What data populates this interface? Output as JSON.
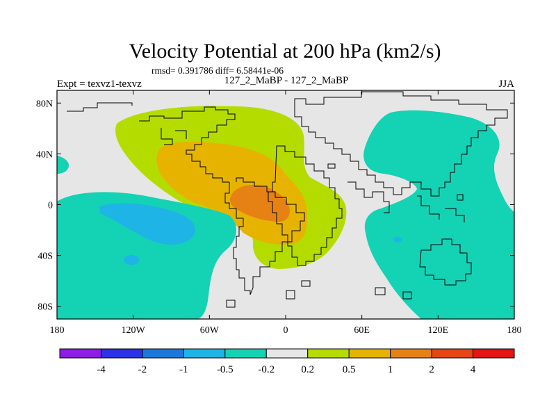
{
  "chart_data": {
    "type": "heatmap",
    "title": "Velocity Potential at 200 hPa (km2/s)",
    "stats": "rmsd= 0.391786 diff= 6.58441e-06",
    "experiment": "Expt = texvz1-texvz",
    "subtitle": "127_2_MaBP - 127_2_MaBP",
    "season": "JJA",
    "x_ticks": [
      "180",
      "120W",
      "60W",
      "0",
      "60E",
      "120E",
      "180"
    ],
    "x_tick_values": [
      -180,
      -120,
      -60,
      0,
      60,
      120,
      180
    ],
    "y_ticks": [
      "80N",
      "40N",
      "0",
      "40S",
      "80S"
    ],
    "y_tick_values": [
      80,
      40,
      0,
      -40,
      -80
    ],
    "xlim": [
      -180,
      180
    ],
    "ylim": [
      -90,
      90
    ],
    "colorbar": {
      "levels": [
        "-4",
        "-2",
        "-1",
        "-0.5",
        "-0.2",
        "0.2",
        "0.5",
        "1",
        "2",
        "4"
      ],
      "colors": [
        "#8c1ee6",
        "#2d32e6",
        "#1e78dc",
        "#1eb4e6",
        "#14d2b4",
        "#e6e6e6",
        "#b4dc00",
        "#e6b400",
        "#e68214",
        "#e64614",
        "#e61414"
      ]
    },
    "fields": [
      {
        "name": "positive-0.2-0.5",
        "level": "0.2 to 0.5",
        "center": [
          -30,
          30
        ]
      },
      {
        "name": "positive-0.5-1",
        "level": "0.5 to 1",
        "center": [
          -40,
          20
        ]
      },
      {
        "name": "positive-1-2",
        "level": "1 to 2",
        "center": [
          -20,
          5
        ]
      },
      {
        "name": "negative-pacific",
        "level": "-0.5 to -0.2",
        "center": [
          -150,
          -30
        ]
      },
      {
        "name": "negative-pacific-core",
        "level": "-1 to -0.5",
        "center": [
          -115,
          -20
        ]
      },
      {
        "name": "negative-asia",
        "level": "-0.5 to -0.2",
        "center": [
          110,
          20
        ]
      }
    ]
  }
}
